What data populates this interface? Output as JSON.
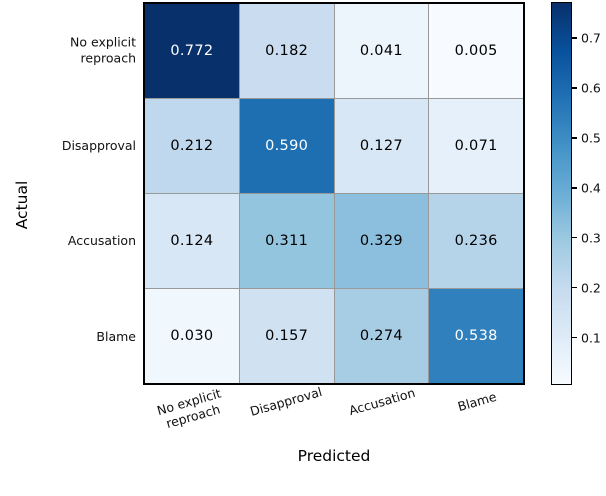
{
  "chart_data": {
    "type": "heatmap",
    "title": "",
    "xlabel": "Predicted",
    "ylabel": "Actual",
    "x_tick_labels": [
      "No explicit\nreproach",
      "Disapproval",
      "Accusation",
      "Blame"
    ],
    "y_tick_labels": [
      "No explicit\nreproach",
      "Disapproval",
      "Accusation",
      "Blame"
    ],
    "matrix": [
      [
        0.772,
        0.182,
        0.041,
        0.005
      ],
      [
        0.212,
        0.59,
        0.127,
        0.071
      ],
      [
        0.124,
        0.311,
        0.329,
        0.236
      ],
      [
        0.03,
        0.157,
        0.274,
        0.538
      ]
    ],
    "cell_labels": [
      [
        "0.772",
        "0.182",
        "0.041",
        "0.005"
      ],
      [
        "0.212",
        "0.590",
        "0.127",
        "0.071"
      ],
      [
        "0.124",
        "0.311",
        "0.329",
        "0.236"
      ],
      [
        "0.030",
        "0.157",
        "0.274",
        "0.538"
      ]
    ],
    "cell_colors": [
      [
        "#08306b",
        "#caddf0",
        "#edf5fc",
        "#f7fbff"
      ],
      [
        "#c0d8ed",
        "#1e6eb2",
        "#d7e7f5",
        "#e6f0fa"
      ],
      [
        "#d8e7f5",
        "#94c5df",
        "#8bbfdd",
        "#b6d4e9"
      ],
      [
        "#f0f7fd",
        "#d0e2f2",
        "#a6cde4",
        "#3080bd"
      ]
    ],
    "cell_text_colors": [
      [
        "#ffffff",
        "#000000",
        "#000000",
        "#000000"
      ],
      [
        "#000000",
        "#ffffff",
        "#000000",
        "#000000"
      ],
      [
        "#000000",
        "#000000",
        "#000000",
        "#000000"
      ],
      [
        "#000000",
        "#000000",
        "#000000",
        "#ffffff"
      ]
    ],
    "colormap": "Blues",
    "vmin": 0.005,
    "vmax": 0.772,
    "colorbar_ticks": [
      "0.1",
      "0.2",
      "0.3",
      "0.4",
      "0.5",
      "0.6",
      "0.7"
    ],
    "colorbar_tick_values": [
      0.1,
      0.2,
      0.3,
      0.4,
      0.5,
      0.6,
      0.7
    ],
    "colorbar_gradient_bottom_to_top": [
      "#f7fbff",
      "#deebf7",
      "#c6dbef",
      "#9ecae1",
      "#6baed6",
      "#4292c6",
      "#2171b5",
      "#08519c",
      "#08306b"
    ],
    "grid_line_color": "#999999",
    "axes_edge_color": "#000000",
    "legend_position": "right-colorbar",
    "grid": "cell-borders"
  }
}
